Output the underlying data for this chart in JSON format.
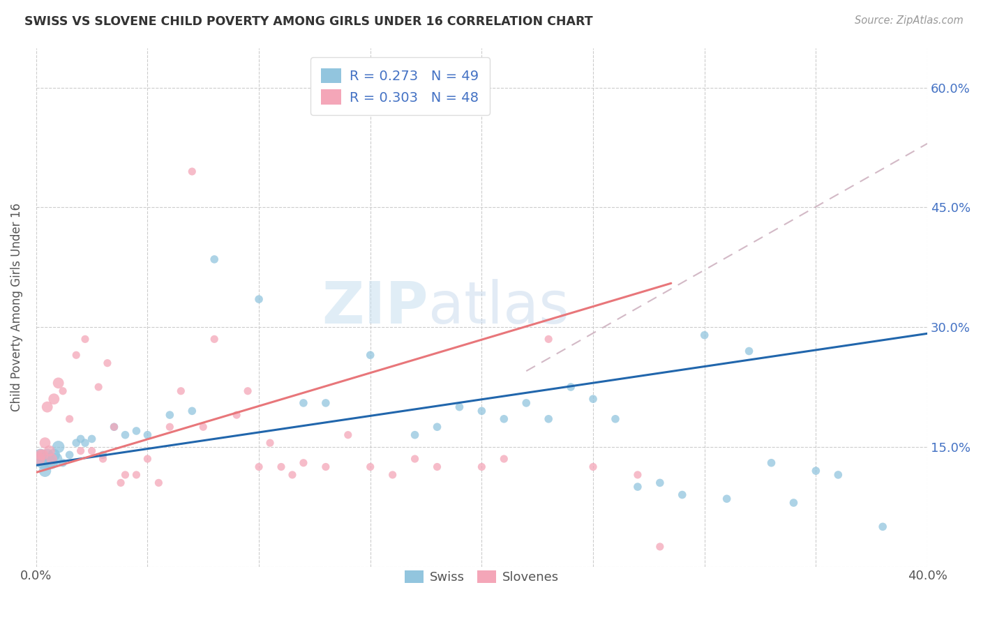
{
  "title": "SWISS VS SLOVENE CHILD POVERTY AMONG GIRLS UNDER 16 CORRELATION CHART",
  "source": "Source: ZipAtlas.com",
  "ylabel": "Child Poverty Among Girls Under 16",
  "xlim": [
    0.0,
    0.4
  ],
  "ylim": [
    0.0,
    0.65
  ],
  "ytick_vals": [
    0.0,
    0.15,
    0.3,
    0.45,
    0.6
  ],
  "right_ytick_vals": [
    0.15,
    0.3,
    0.45,
    0.6
  ],
  "swiss_color": "#92c5de",
  "slovene_color": "#f4a6b8",
  "swiss_line_color": "#2166ac",
  "slovene_line_color": "#e8767a",
  "dashed_line_color": "#c8a8b8",
  "swiss_R": 0.273,
  "swiss_N": 49,
  "slovene_R": 0.303,
  "slovene_N": 48,
  "watermark_zip": "ZIP",
  "watermark_atlas": "atlas",
  "swiss_x": [
    0.001,
    0.002,
    0.003,
    0.004,
    0.005,
    0.006,
    0.007,
    0.008,
    0.009,
    0.01,
    0.012,
    0.015,
    0.018,
    0.02,
    0.022,
    0.025,
    0.03,
    0.035,
    0.04,
    0.045,
    0.05,
    0.06,
    0.07,
    0.08,
    0.1,
    0.12,
    0.13,
    0.15,
    0.17,
    0.18,
    0.19,
    0.2,
    0.21,
    0.22,
    0.23,
    0.24,
    0.25,
    0.26,
    0.27,
    0.28,
    0.29,
    0.3,
    0.31,
    0.32,
    0.33,
    0.34,
    0.35,
    0.36,
    0.38
  ],
  "swiss_y": [
    0.135,
    0.14,
    0.13,
    0.12,
    0.14,
    0.13,
    0.13,
    0.14,
    0.135,
    0.15,
    0.13,
    0.14,
    0.155,
    0.16,
    0.155,
    0.16,
    0.14,
    0.175,
    0.165,
    0.17,
    0.165,
    0.19,
    0.195,
    0.385,
    0.335,
    0.205,
    0.205,
    0.265,
    0.165,
    0.175,
    0.2,
    0.195,
    0.185,
    0.205,
    0.185,
    0.225,
    0.21,
    0.185,
    0.1,
    0.105,
    0.09,
    0.29,
    0.085,
    0.27,
    0.13,
    0.08,
    0.12,
    0.115,
    0.05
  ],
  "slovene_x": [
    0.001,
    0.002,
    0.003,
    0.004,
    0.005,
    0.006,
    0.007,
    0.008,
    0.01,
    0.012,
    0.015,
    0.018,
    0.02,
    0.022,
    0.025,
    0.028,
    0.03,
    0.032,
    0.035,
    0.038,
    0.04,
    0.045,
    0.05,
    0.055,
    0.06,
    0.065,
    0.07,
    0.075,
    0.08,
    0.09,
    0.095,
    0.1,
    0.105,
    0.11,
    0.115,
    0.12,
    0.13,
    0.14,
    0.15,
    0.16,
    0.17,
    0.18,
    0.2,
    0.21,
    0.23,
    0.25,
    0.27,
    0.28
  ],
  "slovene_y": [
    0.135,
    0.14,
    0.14,
    0.155,
    0.2,
    0.145,
    0.135,
    0.21,
    0.23,
    0.22,
    0.185,
    0.265,
    0.145,
    0.285,
    0.145,
    0.225,
    0.135,
    0.255,
    0.175,
    0.105,
    0.115,
    0.115,
    0.135,
    0.105,
    0.175,
    0.22,
    0.495,
    0.175,
    0.285,
    0.19,
    0.22,
    0.125,
    0.155,
    0.125,
    0.115,
    0.13,
    0.125,
    0.165,
    0.125,
    0.115,
    0.135,
    0.125,
    0.125,
    0.135,
    0.285,
    0.125,
    0.115,
    0.025
  ],
  "swiss_line_x": [
    0.0,
    0.4
  ],
  "swiss_line_y": [
    0.127,
    0.292
  ],
  "slovene_line_x": [
    0.0,
    0.285
  ],
  "slovene_line_y": [
    0.118,
    0.355
  ],
  "dashed_line_x": [
    0.22,
    0.4
  ],
  "dashed_line_y": [
    0.245,
    0.53
  ]
}
